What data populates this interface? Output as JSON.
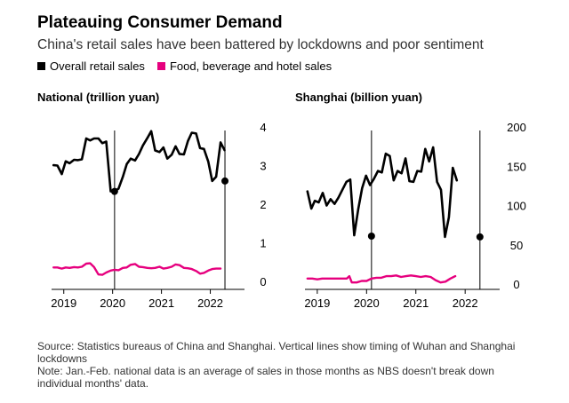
{
  "title": "Plateauing Consumer Demand",
  "subtitle": "China's retail sales have been battered by lockdowns and poor sentiment",
  "legend": [
    {
      "label": "Overall retail sales",
      "color": "#000000"
    },
    {
      "label": "Food, beverage and hotel sales",
      "color": "#e6007e"
    }
  ],
  "notes": {
    "source": "Source: Statistics bureaus of China and Shanghai. Vertical lines show timing of Wuhan and Shanghai lockdowns",
    "note": "Note: Jan.-Feb. national data is an average of sales in those months as NBS doesn't break down individual months' data."
  },
  "chart_data": [
    {
      "type": "line",
      "title": "National (trillion yuan)",
      "x_ticks": [
        2019,
        2020,
        2021,
        2022
      ],
      "x_range": [
        2018.75,
        2022.7
      ],
      "ylim": [
        0,
        4
      ],
      "y_ticks": [
        0,
        1,
        2,
        3,
        4
      ],
      "events": [
        2020.04,
        2022.3
      ],
      "event_markers": [
        {
          "x": 2020.04,
          "y": 2.33
        },
        {
          "x": 2022.3,
          "y": 2.6
        }
      ],
      "series": [
        {
          "name": "Overall retail sales",
          "color": "#000000",
          "points": [
            [
              2018.79,
              3.01
            ],
            [
              2018.87,
              3.0
            ],
            [
              2018.96,
              2.78
            ],
            [
              2019.04,
              3.11
            ],
            [
              2019.12,
              3.06
            ],
            [
              2019.21,
              3.15
            ],
            [
              2019.29,
              3.14
            ],
            [
              2019.37,
              3.16
            ],
            [
              2019.46,
              3.7
            ],
            [
              2019.54,
              3.65
            ],
            [
              2019.62,
              3.7
            ],
            [
              2019.71,
              3.7
            ],
            [
              2019.79,
              3.58
            ],
            [
              2019.87,
              3.62
            ],
            [
              2019.96,
              2.33
            ],
            [
              2020.04,
              2.33
            ],
            [
              2020.12,
              2.4
            ],
            [
              2020.21,
              2.71
            ],
            [
              2020.29,
              3.04
            ],
            [
              2020.37,
              3.18
            ],
            [
              2020.46,
              3.13
            ],
            [
              2020.54,
              3.3
            ],
            [
              2020.62,
              3.52
            ],
            [
              2020.71,
              3.71
            ],
            [
              2020.79,
              3.89
            ],
            [
              2020.87,
              3.39
            ],
            [
              2020.96,
              3.35
            ],
            [
              2021.04,
              3.47
            ],
            [
              2021.12,
              3.18
            ],
            [
              2021.21,
              3.28
            ],
            [
              2021.29,
              3.5
            ],
            [
              2021.37,
              3.3
            ],
            [
              2021.46,
              3.29
            ],
            [
              2021.54,
              3.63
            ],
            [
              2021.62,
              3.85
            ],
            [
              2021.71,
              3.83
            ],
            [
              2021.79,
              3.45
            ],
            [
              2021.87,
              3.43
            ],
            [
              2021.96,
              3.1
            ],
            [
              2022.04,
              2.6
            ],
            [
              2022.12,
              2.71
            ],
            [
              2022.21,
              3.6
            ],
            [
              2022.29,
              3.4
            ]
          ]
        },
        {
          "name": "Food, beverage and hotel sales",
          "color": "#e6007e",
          "points": [
            [
              2018.79,
              0.36
            ],
            [
              2018.87,
              0.36
            ],
            [
              2018.96,
              0.33
            ],
            [
              2019.04,
              0.36
            ],
            [
              2019.12,
              0.35
            ],
            [
              2019.21,
              0.37
            ],
            [
              2019.29,
              0.36
            ],
            [
              2019.37,
              0.38
            ],
            [
              2019.46,
              0.46
            ],
            [
              2019.54,
              0.47
            ],
            [
              2019.62,
              0.37
            ],
            [
              2019.71,
              0.18
            ],
            [
              2019.79,
              0.17
            ],
            [
              2019.87,
              0.23
            ],
            [
              2019.96,
              0.28
            ],
            [
              2020.04,
              0.3
            ],
            [
              2020.12,
              0.29
            ],
            [
              2020.21,
              0.35
            ],
            [
              2020.29,
              0.36
            ],
            [
              2020.37,
              0.43
            ],
            [
              2020.46,
              0.45
            ],
            [
              2020.54,
              0.38
            ],
            [
              2020.62,
              0.37
            ],
            [
              2020.71,
              0.35
            ],
            [
              2020.79,
              0.34
            ],
            [
              2020.87,
              0.35
            ],
            [
              2020.96,
              0.38
            ],
            [
              2021.04,
              0.33
            ],
            [
              2021.12,
              0.35
            ],
            [
              2021.21,
              0.38
            ],
            [
              2021.29,
              0.44
            ],
            [
              2021.37,
              0.42
            ],
            [
              2021.46,
              0.35
            ],
            [
              2021.54,
              0.34
            ],
            [
              2021.62,
              0.32
            ],
            [
              2021.71,
              0.27
            ],
            [
              2021.79,
              0.2
            ],
            [
              2021.87,
              0.22
            ],
            [
              2021.96,
              0.28
            ],
            [
              2022.04,
              0.32
            ],
            [
              2022.12,
              0.33
            ],
            [
              2022.21,
              0.33
            ]
          ]
        }
      ]
    },
    {
      "type": "line",
      "title": "Shanghai (billion yuan)",
      "x_ticks": [
        2019,
        2020,
        2021,
        2022
      ],
      "x_range": [
        2018.75,
        2022.7
      ],
      "ylim": [
        0,
        200
      ],
      "y_ticks": [
        0,
        50,
        100,
        150,
        200
      ],
      "events": [
        2020.1,
        2022.3
      ],
      "event_markers": [
        {
          "x": 2020.1,
          "y": 61
        },
        {
          "x": 2022.3,
          "y": 60
        }
      ],
      "series": [
        {
          "name": "Overall retail sales",
          "color": "#000000",
          "points": [
            [
              2018.8,
              118
            ],
            [
              2018.88,
              96
            ],
            [
              2018.95,
              106
            ],
            [
              2019.03,
              104
            ],
            [
              2019.11,
              116
            ],
            [
              2019.19,
              100
            ],
            [
              2019.27,
              108
            ],
            [
              2019.35,
              102
            ],
            [
              2019.43,
              110
            ],
            [
              2019.51,
              120
            ],
            [
              2019.59,
              130
            ],
            [
              2019.67,
              133
            ],
            [
              2019.75,
              62
            ],
            [
              2019.83,
              95
            ],
            [
              2019.91,
              122
            ],
            [
              2019.99,
              138
            ],
            [
              2020.07,
              126
            ],
            [
              2020.15,
              134
            ],
            [
              2020.23,
              144
            ],
            [
              2020.31,
              142
            ],
            [
              2020.39,
              166
            ],
            [
              2020.47,
              163
            ],
            [
              2020.55,
              132
            ],
            [
              2020.63,
              144
            ],
            [
              2020.71,
              141
            ],
            [
              2020.79,
              160
            ],
            [
              2020.87,
              131
            ],
            [
              2020.95,
              130
            ],
            [
              2021.03,
              144
            ],
            [
              2021.11,
              143
            ],
            [
              2021.19,
              172
            ],
            [
              2021.27,
              156
            ],
            [
              2021.35,
              174
            ],
            [
              2021.43,
              130
            ],
            [
              2021.51,
              120
            ],
            [
              2021.59,
              60
            ],
            [
              2021.67,
              85
            ],
            [
              2021.75,
              148
            ],
            [
              2021.83,
              132
            ]
          ]
        },
        {
          "name": "Food, beverage and hotel sales",
          "color": "#e6007e",
          "points": [
            [
              2018.8,
              7
            ],
            [
              2018.9,
              7
            ],
            [
              2019.0,
              6
            ],
            [
              2019.1,
              7
            ],
            [
              2019.2,
              7
            ],
            [
              2019.3,
              7
            ],
            [
              2019.4,
              7
            ],
            [
              2019.5,
              7
            ],
            [
              2019.6,
              7
            ],
            [
              2019.65,
              10
            ],
            [
              2019.7,
              2
            ],
            [
              2019.8,
              2
            ],
            [
              2019.9,
              4
            ],
            [
              2020.0,
              4
            ],
            [
              2020.1,
              7
            ],
            [
              2020.2,
              8
            ],
            [
              2020.3,
              8
            ],
            [
              2020.4,
              10
            ],
            [
              2020.5,
              10
            ],
            [
              2020.6,
              11
            ],
            [
              2020.7,
              9
            ],
            [
              2020.8,
              10
            ],
            [
              2020.9,
              11
            ],
            [
              2021.0,
              10
            ],
            [
              2021.1,
              9
            ],
            [
              2021.2,
              10
            ],
            [
              2021.3,
              9
            ],
            [
              2021.4,
              5
            ],
            [
              2021.5,
              2
            ],
            [
              2021.6,
              3
            ],
            [
              2021.7,
              7
            ],
            [
              2021.8,
              10
            ]
          ]
        }
      ]
    }
  ]
}
